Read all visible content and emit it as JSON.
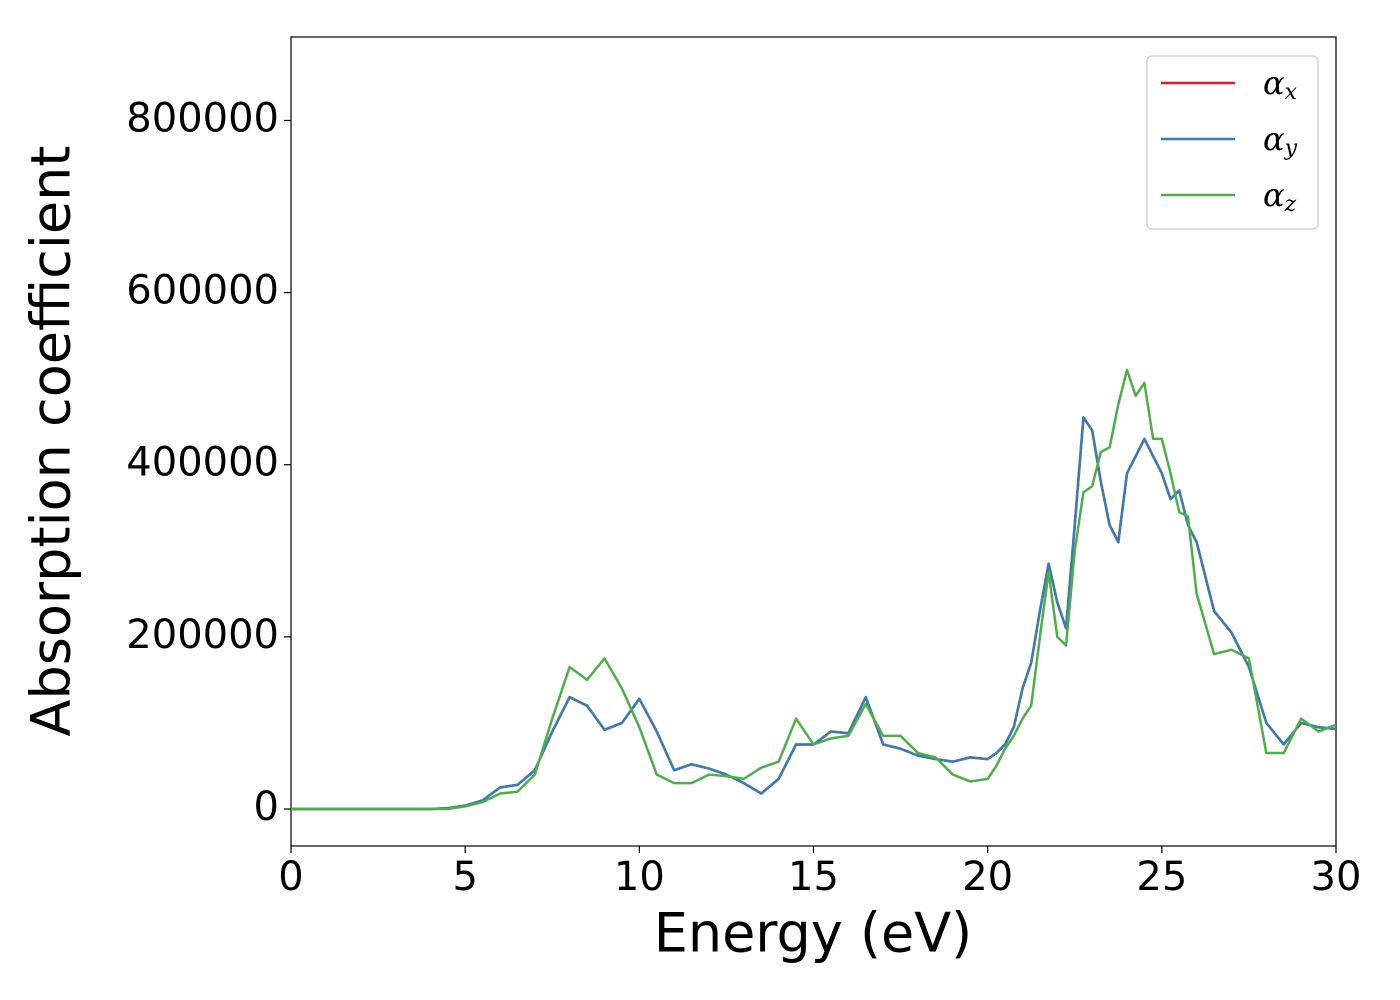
{
  "chart_data": {
    "type": "line",
    "xlabel": "Energy (eV)",
    "ylabel": "Absorption coefficient",
    "x": [
      0,
      0.5,
      1,
      1.5,
      2,
      2.5,
      3,
      3.5,
      4,
      4.5,
      5,
      5.5,
      6,
      6.5,
      7,
      7.5,
      8,
      8.5,
      9,
      9.5,
      10,
      10.5,
      11,
      11.5,
      12,
      12.5,
      13,
      13.5,
      14,
      14.5,
      15,
      15.5,
      16,
      16.5,
      17,
      17.5,
      18,
      18.5,
      19,
      19.5,
      20,
      20.25,
      20.5,
      20.75,
      21,
      21.25,
      21.5,
      21.75,
      22,
      22.25,
      22.5,
      22.75,
      23,
      23.25,
      23.5,
      23.75,
      24,
      24.25,
      24.5,
      24.75,
      25,
      25.25,
      25.5,
      25.75,
      26,
      26.5,
      27,
      27.5,
      28,
      28.5,
      29,
      29.5,
      30
    ],
    "series": [
      {
        "name": "αx",
        "color": "#e41a1c",
        "values": [
          0,
          0,
          0,
          0,
          0,
          0,
          0,
          0,
          0,
          1000,
          4000,
          10000,
          25000,
          28000,
          45000,
          90000,
          130000,
          120000,
          92000,
          100000,
          128000,
          90000,
          45000,
          52000,
          47000,
          40000,
          30000,
          18000,
          35000,
          75000,
          75000,
          90000,
          88000,
          130000,
          75000,
          70000,
          62000,
          58000,
          55000,
          60000,
          58000,
          65000,
          75000,
          95000,
          140000,
          170000,
          230000,
          285000,
          240000,
          210000,
          330000,
          455000,
          440000,
          380000,
          330000,
          310000,
          390000,
          410000,
          430000,
          410000,
          390000,
          360000,
          370000,
          330000,
          310000,
          230000,
          205000,
          165000,
          100000,
          75000,
          100000,
          95000,
          93000
        ]
      },
      {
        "name": "αy",
        "color": "#377eb8",
        "values": [
          0,
          0,
          0,
          0,
          0,
          0,
          0,
          0,
          0,
          1000,
          4000,
          10000,
          25000,
          28000,
          45000,
          90000,
          130000,
          120000,
          92000,
          100000,
          128000,
          90000,
          45000,
          52000,
          47000,
          40000,
          30000,
          18000,
          35000,
          75000,
          75000,
          90000,
          88000,
          130000,
          75000,
          70000,
          62000,
          58000,
          55000,
          60000,
          58000,
          65000,
          75000,
          95000,
          140000,
          170000,
          230000,
          285000,
          240000,
          210000,
          330000,
          455000,
          440000,
          380000,
          330000,
          310000,
          390000,
          410000,
          430000,
          410000,
          390000,
          360000,
          370000,
          330000,
          310000,
          230000,
          205000,
          165000,
          100000,
          75000,
          100000,
          95000,
          93000
        ]
      },
      {
        "name": "αz",
        "color": "#4daf4a",
        "values": [
          0,
          0,
          0,
          0,
          0,
          0,
          0,
          0,
          0,
          0,
          3000,
          8000,
          18000,
          20000,
          40000,
          105000,
          165000,
          150000,
          175000,
          140000,
          95000,
          40000,
          30000,
          30000,
          40000,
          38000,
          35000,
          48000,
          55000,
          105000,
          75000,
          82000,
          85000,
          122000,
          85000,
          85000,
          65000,
          60000,
          40000,
          32000,
          35000,
          50000,
          70000,
          85000,
          105000,
          120000,
          200000,
          275000,
          200000,
          190000,
          300000,
          368000,
          375000,
          415000,
          420000,
          470000,
          510000,
          480000,
          495000,
          430000,
          430000,
          390000,
          345000,
          340000,
          250000,
          180000,
          185000,
          175000,
          65000,
          65000,
          105000,
          90000,
          98000
        ]
      }
    ],
    "xlim": [
      0,
      30
    ],
    "xticks": [
      0,
      5,
      10,
      15,
      20,
      25,
      30
    ],
    "ylim": [
      -43000,
      897000
    ],
    "yticks": [
      0,
      200000,
      400000,
      600000,
      800000
    ],
    "grid": false,
    "legend": "upper right"
  }
}
